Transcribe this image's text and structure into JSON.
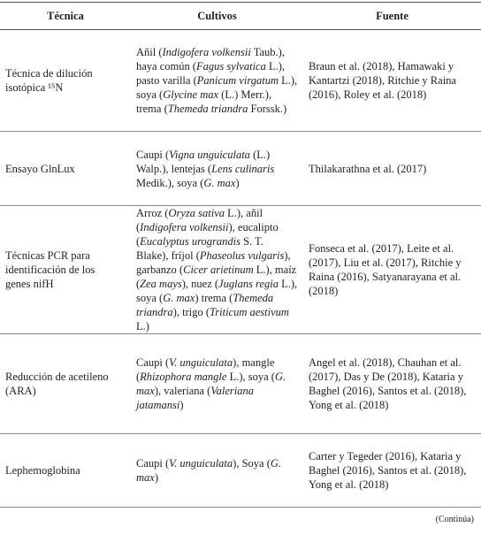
{
  "table": {
    "header": [
      "Técnica",
      "Cultivos",
      "Fuente"
    ],
    "rows": [
      [
        [
          "Técnica de dilución isotópica ¹⁵N"
        ],
        [
          "Añil (",
          {
            "italic": "Indigofera volkensii"
          },
          " Taub.), haya común (",
          {
            "italic": "Fagus sylvatica"
          },
          " L.), pasto varilla (",
          {
            "italic": "Panicum virgatum"
          },
          " L.), soya (",
          {
            "italic": "Glycine max"
          },
          " (L.) Merr.), trema (",
          {
            "italic": "Themeda triandra"
          },
          " Forssk.)"
        ],
        [
          "Braun et al. (2018), Hamawaki y Kantartzi (2018), Ritchie y Raina (2016), Roley et al. (2018)"
        ]
      ],
      [
        [
          "Ensayo GlnLux"
        ],
        [
          "Caupi (",
          {
            "italic": "Vigna unguiculata"
          },
          " (L.) Walp.), lentejas (",
          {
            "italic": "Lens culinaris"
          },
          " Medik.), soya (",
          {
            "italic": "G. max"
          },
          ")"
        ],
        [
          "Thilakarathna et al. (2017)"
        ]
      ],
      [
        [
          "Técnicas PCR para identificación de los genes nifH"
        ],
        [
          "Arroz (",
          {
            "italic": "Oryza sativa"
          },
          " L.), añil (",
          {
            "italic": "Indigofera volkensii"
          },
          "), eucalipto (",
          {
            "italic": "Eucalyptus urograndis"
          },
          " S. T. Blake), fríjol (",
          {
            "italic": "Phaseolus vulgaris"
          },
          "), garbanzo (",
          {
            "italic": "Cicer arietinum"
          },
          " L.), maíz (",
          {
            "italic": "Zea mays"
          },
          "), nuez (",
          {
            "italic": "Juglans regia"
          },
          " L.), soya (",
          {
            "italic": "G. max"
          },
          ") trema (",
          {
            "italic": "Themeda triandra"
          },
          "), trigo (",
          {
            "italic": "Triticum aestivum"
          },
          " L.)"
        ],
        [
          "Fonseca et al. (2017), Leite et al. (2017), Liu et al. (2017), Ritchie y Raina (2016), Satyanarayana et al. (2018)"
        ]
      ],
      [
        [
          "Reducción de acetileno (ARA)"
        ],
        [
          "Caupi (",
          {
            "italic": "V. unguiculata"
          },
          "), mangle (",
          {
            "italic": "Rhizophora mangle"
          },
          " L.), soya (",
          {
            "italic": "G. max"
          },
          "), valeriana (",
          {
            "italic": "Valeriana jatamansi"
          },
          ")"
        ],
        [
          "Angel et al. (2018), Chauhan et al. (2017), Das y De (2018), Kataria y Baghel (2016), Santos et al. (2018), Yong et al. (2018)"
        ]
      ],
      [
        [
          "Lephemoglobina"
        ],
        [
          "Caupi (",
          {
            "italic": "V. unguiculata"
          },
          "), Soya (",
          {
            "italic": "G. max"
          },
          ")"
        ],
        [
          "Carter y Tegeder (2016), Kataria y Baghel (2016), Santos et al. (2018), Yong et al. (2018)"
        ]
      ]
    ],
    "footer": "(Continúa)"
  }
}
